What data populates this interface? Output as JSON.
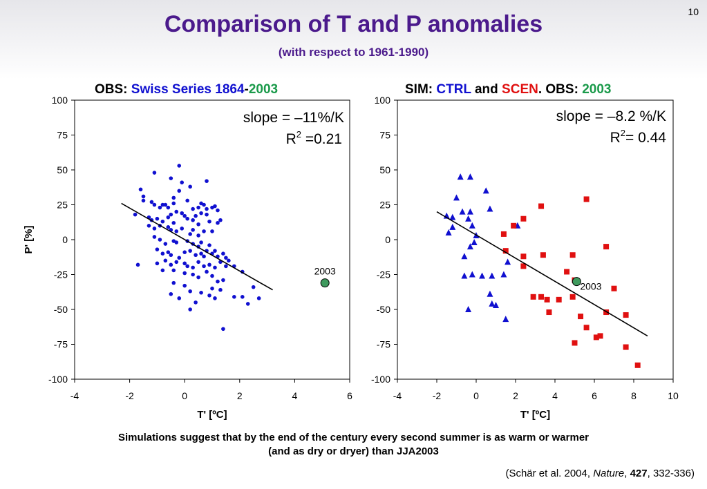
{
  "slide_number": "10",
  "title": "Comparison of T and P anomalies",
  "subtitle": "(with respect to 1961-1990)",
  "left_panel_title": {
    "prefix": "OBS: ",
    "series": "Swiss Series 1864",
    "dash": "-",
    "year": "2003"
  },
  "right_panel_title": {
    "sim": "SIM: ",
    "ctrl": "CTRL",
    "and": " and ",
    "scen": "SCEN",
    "obs": ". OBS: ",
    "year": "2003"
  },
  "caption_line1": "Simulations suggest that by the end of the century every second summer is as warm or warmer",
  "caption_line2": "(and as dry or dryer) than JJA2003",
  "citation": {
    "author": "(Schär et al. 2004, ",
    "journal": "Nature",
    "sep1": ", ",
    "volume": "427",
    "pages": ", 332-336)"
  },
  "colors": {
    "title": "#4b1a8c",
    "obs_series": "#1010d0",
    "ctrl": "#1010d0",
    "scen": "#e01010",
    "year_2003_text": "#1a9a4a",
    "point_2003_fill": "#3f9a5e"
  },
  "chart_data": [
    {
      "type": "scatter",
      "xlabel": "T' [ºC]",
      "ylabel": "P' [%]",
      "xlim": [
        -4,
        6
      ],
      "ylim": [
        -100,
        100
      ],
      "xticks": [
        "-4",
        "-2",
        "0",
        "2",
        "4",
        "6"
      ],
      "yticks": [
        "100",
        "75",
        "50",
        "25",
        "0",
        "-25",
        "-50",
        "-75",
        "-100"
      ],
      "annotation_slope": "slope = –11%/K",
      "annotation_r2_prefix": "R",
      "annotation_r2_sup": "2",
      "annotation_r2_value": " =0.21",
      "highlight": {
        "label": "2003",
        "x": 5.1,
        "y": -31
      },
      "regression": {
        "x": [
          -2.3,
          3.2
        ],
        "y": [
          26,
          -36
        ]
      },
      "series": [
        {
          "marker": "circle",
          "color": "#1010d0",
          "points": [
            [
              -1.1,
              48
            ],
            [
              -0.2,
              53
            ],
            [
              -0.1,
              41
            ],
            [
              0.8,
              42
            ],
            [
              -0.5,
              44
            ],
            [
              0.2,
              38
            ],
            [
              -0.2,
              35
            ],
            [
              -1.6,
              36
            ],
            [
              -1.5,
              31
            ],
            [
              -1.5,
              28
            ],
            [
              -1.2,
              27
            ],
            [
              -1.1,
              25
            ],
            [
              -0.8,
              25
            ],
            [
              -0.6,
              23
            ],
            [
              -0.7,
              25
            ],
            [
              -0.9,
              23
            ],
            [
              -0.4,
              26
            ],
            [
              -0.4,
              30
            ],
            [
              0.1,
              28
            ],
            [
              0.3,
              22
            ],
            [
              0.5,
              23
            ],
            [
              0.7,
              25
            ],
            [
              0.6,
              26
            ],
            [
              0.8,
              22
            ],
            [
              1.0,
              23
            ],
            [
              1.1,
              24
            ],
            [
              1.2,
              21
            ],
            [
              -1.8,
              18
            ],
            [
              -1.3,
              16
            ],
            [
              -1.2,
              14
            ],
            [
              -1.0,
              15
            ],
            [
              -0.8,
              13
            ],
            [
              -0.6,
              16
            ],
            [
              -0.5,
              18
            ],
            [
              -0.4,
              12
            ],
            [
              -0.3,
              20
            ],
            [
              -0.1,
              19
            ],
            [
              0.0,
              17
            ],
            [
              0.1,
              15
            ],
            [
              0.3,
              14
            ],
            [
              0.4,
              17
            ],
            [
              0.5,
              11
            ],
            [
              0.6,
              19
            ],
            [
              0.8,
              18
            ],
            [
              0.9,
              13
            ],
            [
              1.2,
              12
            ],
            [
              1.3,
              14
            ],
            [
              -1.3,
              10
            ],
            [
              -1.1,
              8
            ],
            [
              -0.9,
              10
            ],
            [
              -0.6,
              9
            ],
            [
              -0.5,
              7
            ],
            [
              -0.3,
              6
            ],
            [
              -0.1,
              8
            ],
            [
              0.2,
              4
            ],
            [
              0.3,
              7
            ],
            [
              0.5,
              3
            ],
            [
              0.7,
              6
            ],
            [
              1.0,
              6
            ],
            [
              -1.1,
              2
            ],
            [
              -0.9,
              0
            ],
            [
              -0.7,
              -3
            ],
            [
              -0.4,
              -1
            ],
            [
              -0.3,
              -2
            ],
            [
              0.1,
              -1
            ],
            [
              0.3,
              -3
            ],
            [
              0.5,
              -5
            ],
            [
              0.6,
              -2
            ],
            [
              0.9,
              -4
            ],
            [
              1.1,
              -8
            ],
            [
              -1.0,
              -7
            ],
            [
              -0.8,
              -10
            ],
            [
              -0.6,
              -9
            ],
            [
              -0.5,
              -11
            ],
            [
              -0.2,
              -13
            ],
            [
              0.0,
              -9
            ],
            [
              0.2,
              -8
            ],
            [
              0.4,
              -11
            ],
            [
              0.6,
              -10
            ],
            [
              0.7,
              -12
            ],
            [
              0.8,
              -8
            ],
            [
              1.0,
              -10
            ],
            [
              1.2,
              -12
            ],
            [
              1.4,
              -10
            ],
            [
              1.5,
              -13
            ],
            [
              -1.7,
              -18
            ],
            [
              -1.0,
              -17
            ],
            [
              -0.7,
              -15
            ],
            [
              -0.5,
              -18
            ],
            [
              -0.3,
              -16
            ],
            [
              0.0,
              -17
            ],
            [
              0.1,
              -19
            ],
            [
              0.3,
              -20
            ],
            [
              0.5,
              -16
            ],
            [
              0.7,
              -19
            ],
            [
              0.9,
              -18
            ],
            [
              1.1,
              -20
            ],
            [
              1.3,
              -16
            ],
            [
              1.5,
              -19
            ],
            [
              1.6,
              -15
            ],
            [
              1.8,
              -19
            ],
            [
              -0.8,
              -22
            ],
            [
              -0.4,
              -22
            ],
            [
              0.0,
              -24
            ],
            [
              0.3,
              -25
            ],
            [
              0.5,
              -27
            ],
            [
              0.8,
              -23
            ],
            [
              1.0,
              -26
            ],
            [
              1.2,
              -30
            ],
            [
              1.4,
              -29
            ],
            [
              2.1,
              -23
            ],
            [
              -0.4,
              -31
            ],
            [
              0.0,
              -33
            ],
            [
              0.2,
              -37
            ],
            [
              0.6,
              -38
            ],
            [
              1.0,
              -35
            ],
            [
              1.3,
              -36
            ],
            [
              1.8,
              -41
            ],
            [
              2.5,
              -34
            ],
            [
              2.7,
              -42
            ],
            [
              -0.2,
              -42
            ],
            [
              0.4,
              -45
            ],
            [
              0.9,
              -40
            ],
            [
              1.1,
              -42
            ],
            [
              2.1,
              -41
            ],
            [
              -0.5,
              -39
            ],
            [
              0.2,
              -50
            ],
            [
              1.4,
              -64
            ],
            [
              2.3,
              -46
            ]
          ]
        }
      ]
    },
    {
      "type": "scatter",
      "xlabel": "T' [ºC]",
      "ylabel": "",
      "xlim": [
        -4,
        10
      ],
      "ylim": [
        -100,
        100
      ],
      "xticks": [
        "-4",
        "-2",
        "0",
        "2",
        "4",
        "6",
        "8",
        "10"
      ],
      "yticks": [
        "100",
        "75",
        "50",
        "25",
        "0",
        "-25",
        "-50",
        "-75",
        "-100"
      ],
      "annotation_slope": "slope = –8.2 %/K",
      "annotation_r2_prefix": "R",
      "annotation_r2_sup": "2",
      "annotation_r2_value": "= 0.44",
      "highlight": {
        "label": "2003",
        "x": 5.1,
        "y": -30
      },
      "regression": {
        "x": [
          -2.0,
          8.7
        ],
        "y": [
          20,
          -69
        ]
      },
      "series": [
        {
          "name": "CTRL",
          "marker": "triangle",
          "color": "#1010d0",
          "points": [
            [
              -0.8,
              45
            ],
            [
              -0.3,
              45
            ],
            [
              0.5,
              35
            ],
            [
              -1.0,
              30
            ],
            [
              -0.7,
              20
            ],
            [
              -0.3,
              20
            ],
            [
              -1.5,
              17
            ],
            [
              -1.2,
              16
            ],
            [
              -0.4,
              15
            ],
            [
              -0.2,
              10
            ],
            [
              0.7,
              22
            ],
            [
              2.1,
              10
            ],
            [
              -1.4,
              5
            ],
            [
              -1.2,
              9
            ],
            [
              0.0,
              3
            ],
            [
              -0.1,
              -2
            ],
            [
              -0.3,
              -5
            ],
            [
              1.6,
              -16
            ],
            [
              -0.6,
              -12
            ],
            [
              -0.2,
              -25
            ],
            [
              0.3,
              -26
            ],
            [
              -0.6,
              -26
            ],
            [
              0.8,
              -26
            ],
            [
              1.4,
              -25
            ],
            [
              -0.4,
              -50
            ],
            [
              0.8,
              -46
            ],
            [
              0.7,
              -39
            ],
            [
              1.0,
              -47
            ],
            [
              1.5,
              -57
            ]
          ]
        },
        {
          "name": "SCEN",
          "marker": "square",
          "color": "#e01010",
          "points": [
            [
              1.4,
              4
            ],
            [
              1.9,
              10
            ],
            [
              2.4,
              15
            ],
            [
              3.3,
              24
            ],
            [
              5.6,
              29
            ],
            [
              1.5,
              -8
            ],
            [
              2.4,
              -12
            ],
            [
              3.4,
              -11
            ],
            [
              4.9,
              -11
            ],
            [
              6.6,
              -5
            ],
            [
              2.4,
              -19
            ],
            [
              4.6,
              -23
            ],
            [
              5.0,
              -29
            ],
            [
              2.9,
              -41
            ],
            [
              3.3,
              -41
            ],
            [
              3.6,
              -43
            ],
            [
              4.2,
              -43
            ],
            [
              4.9,
              -41
            ],
            [
              7.0,
              -35
            ],
            [
              3.7,
              -52
            ],
            [
              5.3,
              -55
            ],
            [
              6.6,
              -52
            ],
            [
              7.6,
              -54
            ],
            [
              5.6,
              -63
            ],
            [
              6.1,
              -70
            ],
            [
              6.3,
              -69
            ],
            [
              5.0,
              -74
            ],
            [
              7.6,
              -77
            ],
            [
              8.2,
              -90
            ]
          ]
        }
      ]
    }
  ]
}
